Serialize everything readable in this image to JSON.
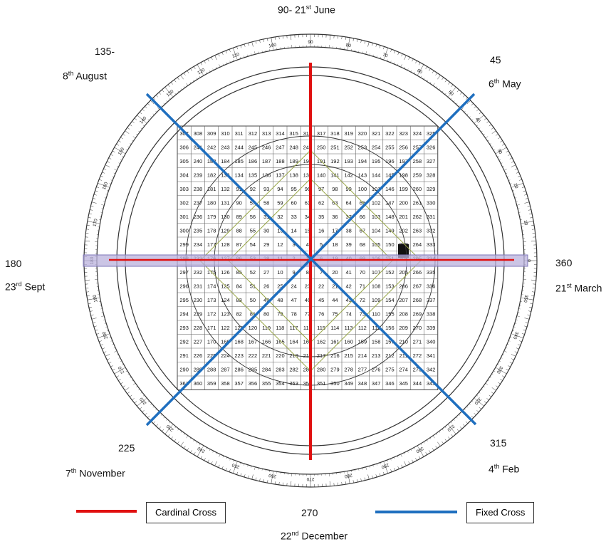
{
  "colors": {
    "cardinal": "#e01010",
    "fixed": "#1f6fbf",
    "band": "#b9b2dc",
    "grid": "#444444",
    "diamond": "#9aa84a"
  },
  "labels": {
    "top_num": "90- 21",
    "top_sup": "st",
    "top_tail": " June",
    "tl_num": "135-",
    "tl_day": "8",
    "tl_sup": "th",
    "tl_tail": " August",
    "tr_num": "45",
    "tr_day": "6",
    "tr_sup": "th",
    "tr_tail": " May",
    "left_num": "180",
    "left_day": "23",
    "left_sup": "rd",
    "left_tail": " Sept",
    "right_num": "360",
    "right_day": "21",
    "right_sup": "st",
    "right_tail": " March",
    "bl_num": "225",
    "bl_day": "7",
    "bl_sup": "th",
    "bl_tail": " November",
    "br_num": "315",
    "br_day": "4",
    "br_sup": "th",
    "br_tail": " Feb",
    "bottom_num": "270",
    "bottom_day": "22",
    "bottom_sup": "nd",
    "bottom_tail": " December"
  },
  "legend": {
    "cardinal": "Cardinal Cross",
    "fixed": "Fixed Cross"
  },
  "grid": {
    "rows": [
      [
        "307",
        "308",
        "309",
        "310",
        "311",
        "312",
        "313",
        "314",
        "315",
        "316",
        "317",
        "318",
        "319",
        "320",
        "321",
        "322",
        "323",
        "324",
        "325"
      ],
      [
        "306",
        "241",
        "242",
        "243",
        "244",
        "245",
        "246",
        "247",
        "248",
        "249",
        "250",
        "251",
        "252",
        "253",
        "254",
        "255",
        "256",
        "257",
        "326"
      ],
      [
        "305",
        "240",
        "183",
        "184",
        "185",
        "186",
        "187",
        "188",
        "189",
        "190",
        "191",
        "192",
        "193",
        "194",
        "195",
        "196",
        "197",
        "258",
        "327"
      ],
      [
        "304",
        "239",
        "182",
        "133",
        "134",
        "135",
        "136",
        "137",
        "138",
        "139",
        "140",
        "141",
        "142",
        "143",
        "144",
        "145",
        "198",
        "259",
        "328"
      ],
      [
        "303",
        "238",
        "181",
        "132",
        "91",
        "92",
        "93",
        "94",
        "95",
        "96",
        "97",
        "98",
        "99",
        "100",
        "101",
        "146",
        "199",
        "260",
        "329"
      ],
      [
        "302",
        "237",
        "180",
        "131",
        "90",
        "57",
        "58",
        "59",
        "60",
        "61",
        "62",
        "63",
        "64",
        "65",
        "102",
        "147",
        "200",
        "261",
        "330"
      ],
      [
        "301",
        "236",
        "179",
        "130",
        "89",
        "56",
        "31",
        "32",
        "33",
        "34",
        "35",
        "36",
        "37",
        "66",
        "103",
        "148",
        "201",
        "262",
        "331"
      ],
      [
        "300",
        "235",
        "178",
        "129",
        "88",
        "55",
        "30",
        "13",
        "14",
        "15",
        "16",
        "17",
        "38",
        "67",
        "104",
        "149",
        "202",
        "263",
        "332"
      ],
      [
        "299",
        "234",
        "177",
        "128",
        "87",
        "54",
        "29",
        "12",
        "3",
        "4",
        "5",
        "18",
        "39",
        "68",
        "105",
        "150",
        "203",
        "264",
        "333"
      ],
      [
        "298",
        "233",
        "176",
        "127",
        "86",
        "53",
        "28",
        "11",
        "2",
        "1",
        "6",
        "19",
        "40",
        "69",
        "106",
        "151",
        "204",
        "265",
        "334"
      ],
      [
        "297",
        "232",
        "175",
        "126",
        "85",
        "52",
        "27",
        "10",
        "9",
        "8",
        "7",
        "20",
        "41",
        "70",
        "107",
        "152",
        "205",
        "266",
        "335"
      ],
      [
        "296",
        "231",
        "174",
        "125",
        "84",
        "51",
        "26",
        "25",
        "24",
        "23",
        "22",
        "21",
        "42",
        "71",
        "108",
        "153",
        "206",
        "267",
        "336"
      ],
      [
        "295",
        "230",
        "173",
        "124",
        "83",
        "50",
        "49",
        "48",
        "47",
        "46",
        "45",
        "44",
        "43",
        "72",
        "109",
        "154",
        "207",
        "268",
        "337"
      ],
      [
        "294",
        "229",
        "172",
        "123",
        "82",
        "81",
        "80",
        "79",
        "78",
        "77",
        "76",
        "75",
        "74",
        "73",
        "110",
        "155",
        "208",
        "269",
        "338"
      ],
      [
        "293",
        "228",
        "171",
        "122",
        "121",
        "120",
        "119",
        "118",
        "117",
        "116",
        "115",
        "114",
        "113",
        "112",
        "111",
        "156",
        "209",
        "270",
        "339"
      ],
      [
        "292",
        "227",
        "170",
        "169",
        "168",
        "167",
        "166",
        "165",
        "164",
        "163",
        "162",
        "161",
        "160",
        "159",
        "158",
        "157",
        "210",
        "271",
        "340"
      ],
      [
        "291",
        "226",
        "225",
        "224",
        "223",
        "222",
        "221",
        "220",
        "219",
        "218",
        "217",
        "216",
        "215",
        "214",
        "213",
        "212",
        "211",
        "272",
        "341"
      ],
      [
        "290",
        "289",
        "288",
        "287",
        "286",
        "285",
        "284",
        "283",
        "282",
        "281",
        "280",
        "279",
        "278",
        "277",
        "276",
        "275",
        "274",
        "273",
        "342"
      ],
      [
        "361",
        "360",
        "359",
        "358",
        "357",
        "356",
        "355",
        "354",
        "353",
        "352",
        "351",
        "350",
        "349",
        "348",
        "347",
        "346",
        "345",
        "344",
        "343"
      ]
    ]
  }
}
